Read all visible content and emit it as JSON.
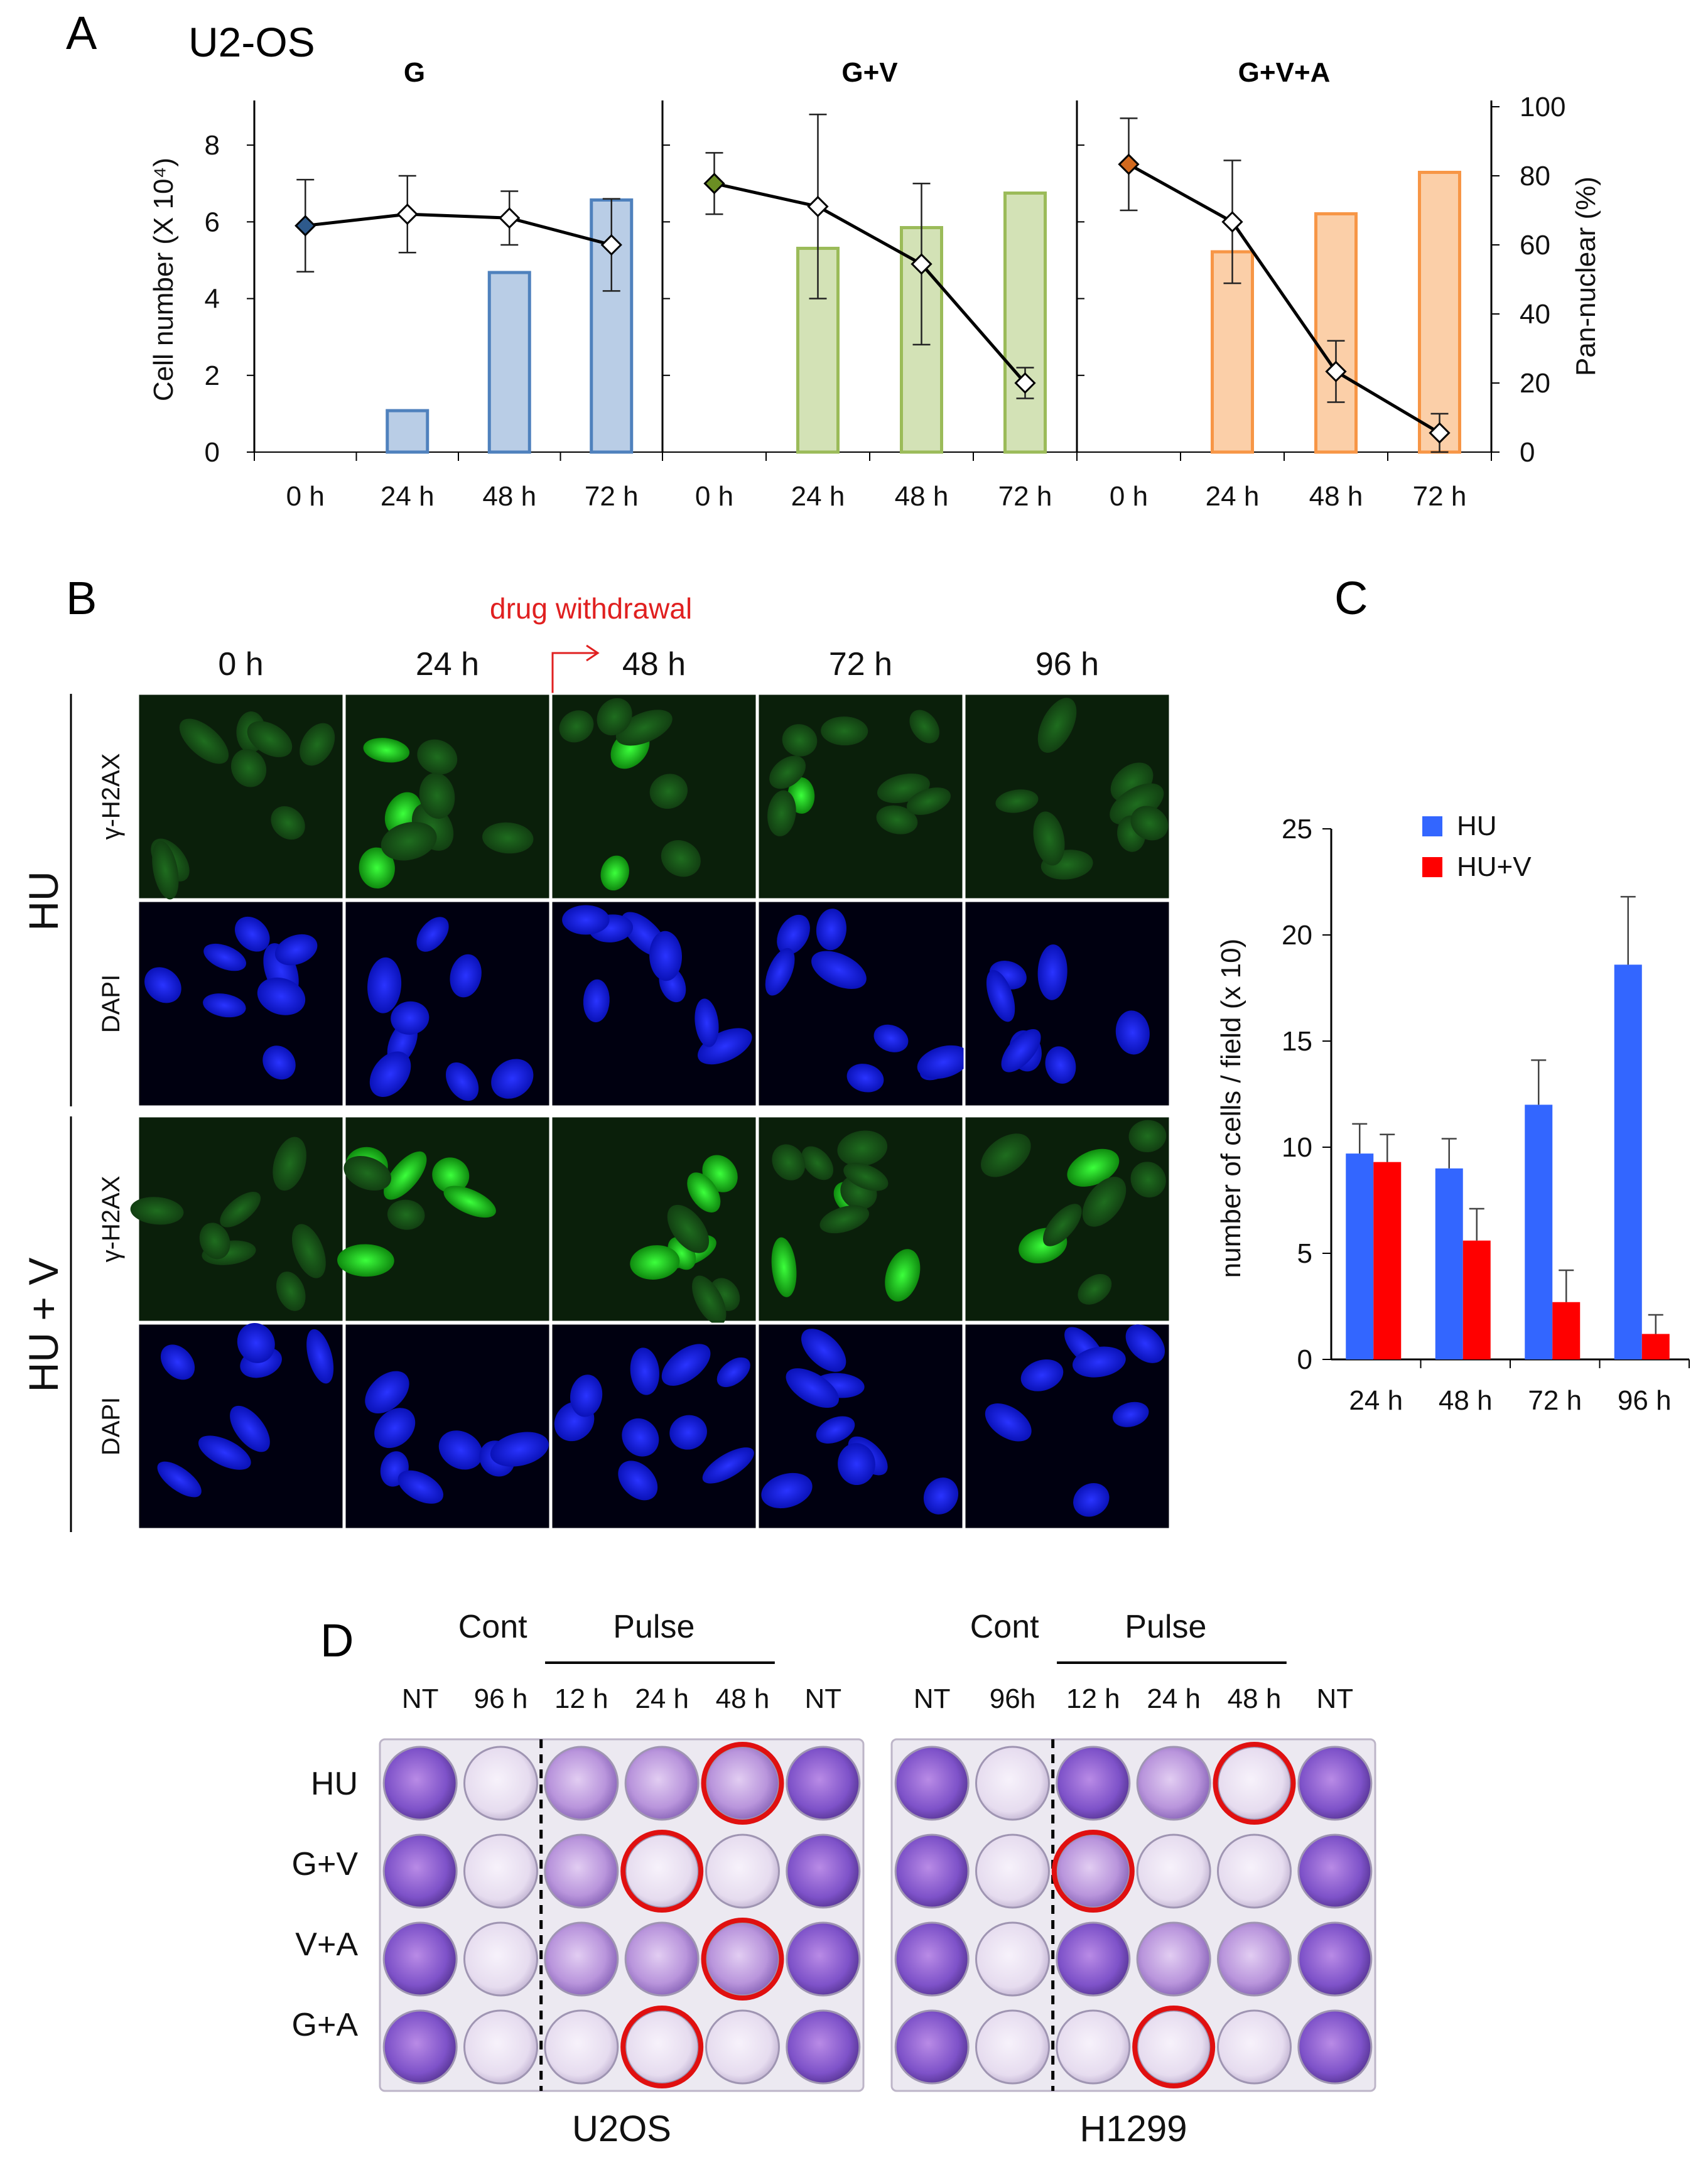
{
  "panel_labels": {
    "a": "A",
    "b": "B",
    "c": "C",
    "d": "D"
  },
  "cell_line": "U2-OS",
  "panel_a": {
    "ylabel_left": "Cell number (X 10⁴)",
    "ylabel_right": "Pan-nuclear (%)",
    "left_ticks": [
      "0",
      "2",
      "4",
      "6",
      "8"
    ],
    "right_ticks": [
      "0",
      "20",
      "40",
      "60",
      "80",
      "100"
    ]
  },
  "panel_b": {
    "timepoints": [
      "0 h",
      "24 h",
      "48 h",
      "72 h",
      "96 h"
    ],
    "annotation": "drug withdrawal",
    "groups": [
      "HU",
      "HU + V"
    ],
    "stains": [
      "γ-H2AX",
      "DAPI"
    ]
  },
  "panel_d": {
    "plates": [
      {
        "name": "U2OS",
        "cols": [
          "NT",
          "96 h",
          "12 h",
          "24 h",
          "48 h",
          "NT"
        ]
      },
      {
        "name": "H1299",
        "cols": [
          "NT",
          "96h",
          "12 h",
          "24 h",
          "48 h",
          "NT"
        ]
      }
    ],
    "cont_label": "Cont",
    "pulse_label": "Pulse",
    "rows": [
      "HU",
      "G+V",
      "V+A",
      "G+A"
    ]
  },
  "chart_data": [
    {
      "type": "bar+line",
      "title": "G",
      "categories": [
        "0 h",
        "24 h",
        "48 h",
        "72 h"
      ],
      "bars": {
        "name": "Pan-nuclear (%)",
        "axis": "right",
        "values": [
          0,
          12,
          52,
          73
        ]
      },
      "line": {
        "name": "Cell number (X 10⁴)",
        "axis": "left",
        "values": [
          5.9,
          6.2,
          6.1,
          5.4
        ],
        "errors": [
          1.2,
          1.0,
          0.7,
          1.2
        ]
      },
      "ylim_left": [
        0,
        9
      ],
      "ylim_right": [
        0,
        100
      ],
      "colors": {
        "bar_fill": "#b9cde6",
        "bar_edge": "#4f81bd",
        "marker": "#2e5a8c"
      }
    },
    {
      "type": "bar+line",
      "title": "G+V",
      "categories": [
        "0 h",
        "24 h",
        "48 h",
        "72 h"
      ],
      "bars": {
        "name": "Pan-nuclear (%)",
        "axis": "right",
        "values": [
          0,
          59,
          65,
          75
        ]
      },
      "line": {
        "name": "Cell number (X 10⁴)",
        "axis": "left",
        "values": [
          7.0,
          6.4,
          4.9,
          1.8
        ],
        "errors": [
          0.8,
          2.4,
          2.1,
          0.4
        ]
      },
      "ylim_left": [
        0,
        9
      ],
      "ylim_right": [
        0,
        100
      ],
      "colors": {
        "bar_fill": "#d3e2b6",
        "bar_edge": "#9bbb59",
        "marker": "#6b8e23"
      }
    },
    {
      "type": "bar+line",
      "title": "G+V+A",
      "categories": [
        "0 h",
        "24 h",
        "48 h",
        "72 h"
      ],
      "bars": {
        "name": "Pan-nuclear (%)",
        "axis": "right",
        "values": [
          0,
          58,
          69,
          81
        ]
      },
      "line": {
        "name": "Cell number (X 10⁴)",
        "axis": "left",
        "values": [
          7.5,
          6.0,
          2.1,
          0.5
        ],
        "errors": [
          1.2,
          1.6,
          0.8,
          0.5
        ]
      },
      "ylim_left": [
        0,
        9
      ],
      "ylim_right": [
        0,
        100
      ],
      "colors": {
        "bar_fill": "#fbcfa8",
        "bar_edge": "#f79646",
        "marker": "#d2691e"
      }
    },
    {
      "type": "bar",
      "categories": [
        "24 h",
        "48 h",
        "72 h",
        "96 h"
      ],
      "series": [
        {
          "name": "HU",
          "values": [
            9.7,
            9.0,
            12.0,
            18.6
          ],
          "errors": [
            1.4,
            1.4,
            2.1,
            3.2
          ],
          "color": "#3366ff"
        },
        {
          "name": "HU+V",
          "values": [
            9.3,
            5.6,
            2.7,
            1.2
          ],
          "errors": [
            1.3,
            1.5,
            1.5,
            0.9
          ],
          "color": "#ff0000"
        }
      ],
      "ylabel": "number of cells / field (x 10)",
      "ylim": [
        0,
        25
      ],
      "yticks": [
        "0",
        "5",
        "10",
        "15",
        "20",
        "25"
      ]
    }
  ]
}
